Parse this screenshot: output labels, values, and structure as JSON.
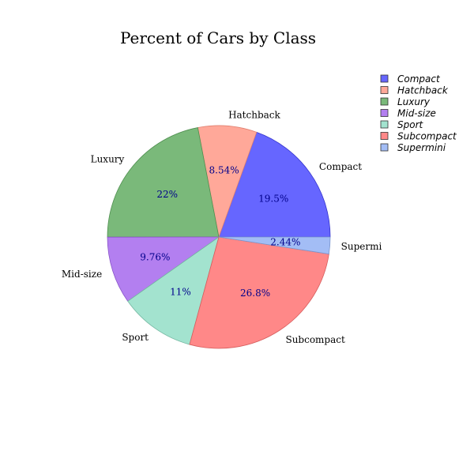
{
  "chart_data": {
    "type": "pie",
    "title": "Percent of Cars by Class",
    "categories": [
      "Compact",
      "Hatchback",
      "Luxury",
      "Mid-size",
      "Sport",
      "Subcompact",
      "Supermini"
    ],
    "values": [
      19.5,
      8.54,
      22,
      9.76,
      11,
      26.8,
      2.44
    ],
    "value_labels": [
      "19.5%",
      "8.54%",
      "22%",
      "9.76%",
      "11%",
      "26.8%",
      "2.44%"
    ],
    "outer_labels": [
      "Compact",
      "Hatchback",
      "Luxury",
      "Mid-size",
      "Sport",
      "Subcompact",
      "Supermi"
    ],
    "legend_entries": [
      "Compact",
      "Hatchback",
      "Luxury",
      "Mid-size",
      "Sport",
      "Subcompact",
      "Supermini"
    ],
    "colors": [
      "#6666ff",
      "#ffa899",
      "#7ab97a",
      "#b37ff0",
      "#a3e3cf",
      "#ff8888",
      "#a3bdf5"
    ],
    "edge_colors": [
      "#3333cc",
      "#e08070",
      "#4f8f4f",
      "#8a55c8",
      "#76b8a2",
      "#d65c5c",
      "#7a95cc"
    ],
    "start_angle_deg": 0,
    "direction": "counterclockwise",
    "legend_position": "top-right"
  }
}
